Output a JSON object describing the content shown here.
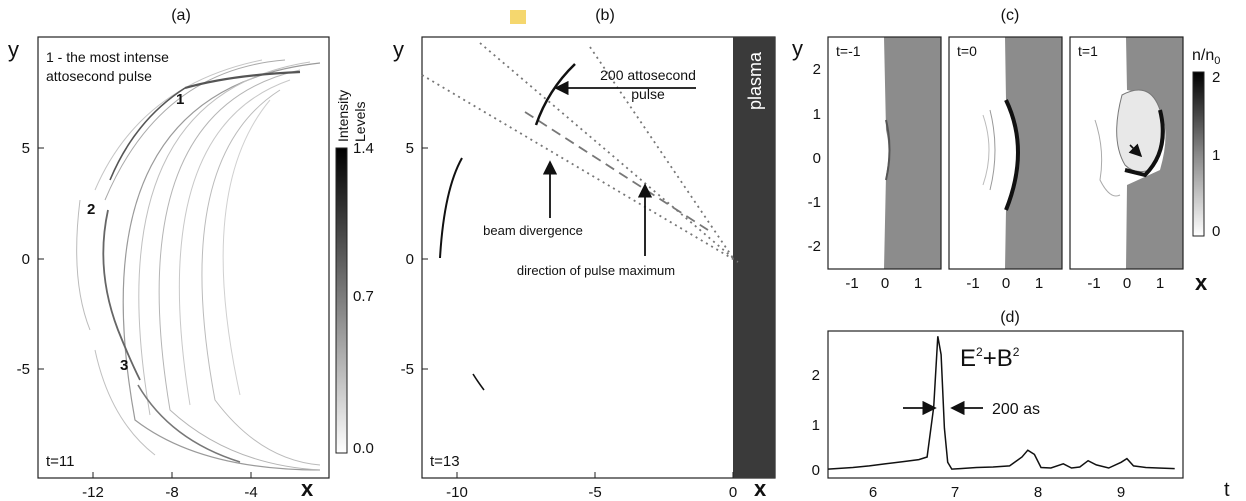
{
  "panels": {
    "a": {
      "label": "(a)",
      "y_axis": "y",
      "x_axis": "x",
      "x_ticks": [
        "-12",
        "-8",
        "-4"
      ],
      "y_ticks": [
        "5",
        "0",
        "-5"
      ],
      "note_line1": "1 - the most intense",
      "note_line2": "attosecond pulse",
      "pulse_labels": [
        "1",
        "2",
        "3"
      ],
      "time": "t=11",
      "colorbar_title_line1": "Intensity",
      "colorbar_title_line2": "Levels",
      "colorbar_ticks": [
        "1.4",
        "0.7",
        "0.0"
      ]
    },
    "b": {
      "label": "(b)",
      "y_axis": "y",
      "x_axis": "x",
      "x_ticks": [
        "-10",
        "-5",
        "0"
      ],
      "y_ticks": [
        "5",
        "0",
        "-5"
      ],
      "pulse_label_line1": "200 attosecond",
      "pulse_label_line2": "pulse",
      "divergence_label": "beam divergence",
      "direction_label": "direction of pulse maximum",
      "plasma_label": "plasma",
      "time": "t=13",
      "marker_color": "#f5d76e"
    },
    "c": {
      "label": "(c)",
      "y_axis": "y",
      "x_axis": "x",
      "y_ticks": [
        "2",
        "1",
        "0",
        "-1",
        "-2"
      ],
      "x_ticks": [
        "-1",
        "0",
        "1"
      ],
      "subpanel_times": [
        "t=-1",
        "t=0",
        "t=1"
      ],
      "colorbar_title": "n/n",
      "colorbar_title_sub": "0",
      "colorbar_ticks": [
        "2",
        "1",
        "0"
      ]
    },
    "d": {
      "label": "(d)",
      "x_axis": "t",
      "x_ticks": [
        "6",
        "7",
        "8",
        "9"
      ],
      "y_ticks": [
        "2",
        "1",
        "0"
      ],
      "formula_E": "E",
      "formula_B": "+B",
      "formula_sup": "2",
      "width_label": "200 as"
    }
  },
  "chart_data": {
    "type": "line",
    "title": "",
    "xlabel": "t",
    "ylabel": "",
    "xlim": [
      5.5,
      9.8
    ],
    "ylim": [
      -0.15,
      2.65
    ],
    "x": [
      5.5,
      5.8,
      6.0,
      6.2,
      6.4,
      6.6,
      6.7,
      6.78,
      6.83,
      6.87,
      6.91,
      6.95,
      7.0,
      7.1,
      7.3,
      7.5,
      7.7,
      7.85,
      7.92,
      8.0,
      8.08,
      8.2,
      8.35,
      8.45,
      8.55,
      8.65,
      8.75,
      8.9,
      9.05,
      9.12,
      9.2,
      9.35,
      9.5,
      9.7
    ],
    "series": [
      {
        "name": "E²+B²",
        "values": [
          0.02,
          0.05,
          0.08,
          0.12,
          0.16,
          0.2,
          0.25,
          1.2,
          2.55,
          2.2,
          0.8,
          0.15,
          0.02,
          0.03,
          0.05,
          0.06,
          0.08,
          0.25,
          0.38,
          0.3,
          0.05,
          0.04,
          0.12,
          0.04,
          0.06,
          0.18,
          0.1,
          0.04,
          0.15,
          0.22,
          0.08,
          0.05,
          0.04,
          0.03
        ]
      }
    ]
  }
}
